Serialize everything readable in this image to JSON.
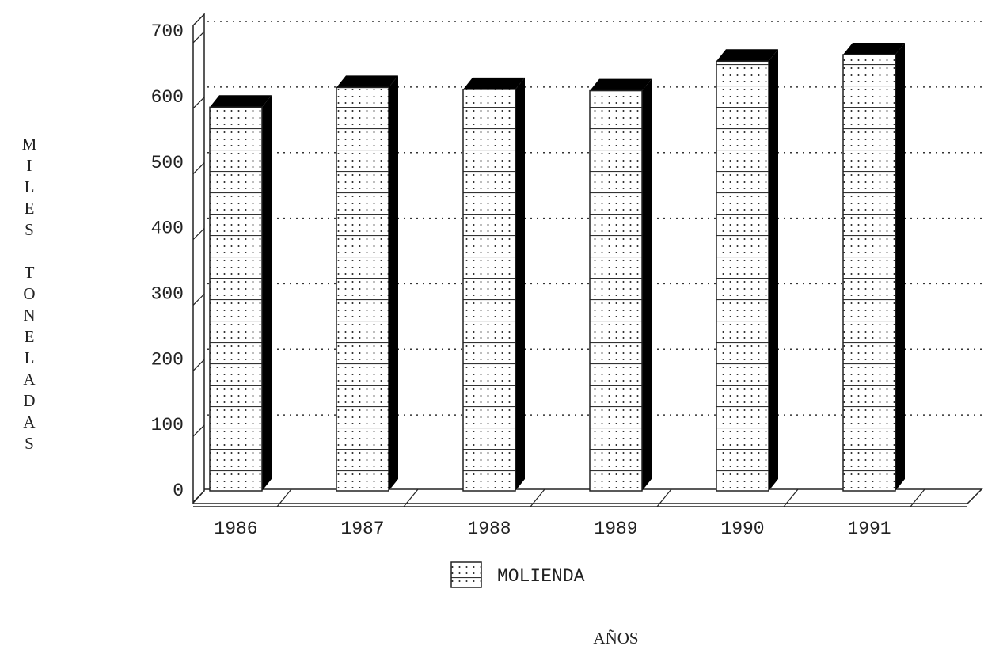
{
  "chart_data": {
    "type": "bar3d",
    "y_label": "MILES TONELADAS",
    "x_label": "AÑOS",
    "categories": [
      "1986",
      "1987",
      "1988",
      "1989",
      "1990",
      "1991"
    ],
    "series": [
      {
        "name": "MOLIENDA",
        "color": "#000000",
        "values": [
          585,
          615,
          612,
          610,
          655,
          665
        ]
      }
    ],
    "ylim": [
      0,
      700
    ],
    "yticks": [
      0,
      100,
      200,
      300,
      400,
      500,
      600,
      700
    ],
    "grid": true
  }
}
